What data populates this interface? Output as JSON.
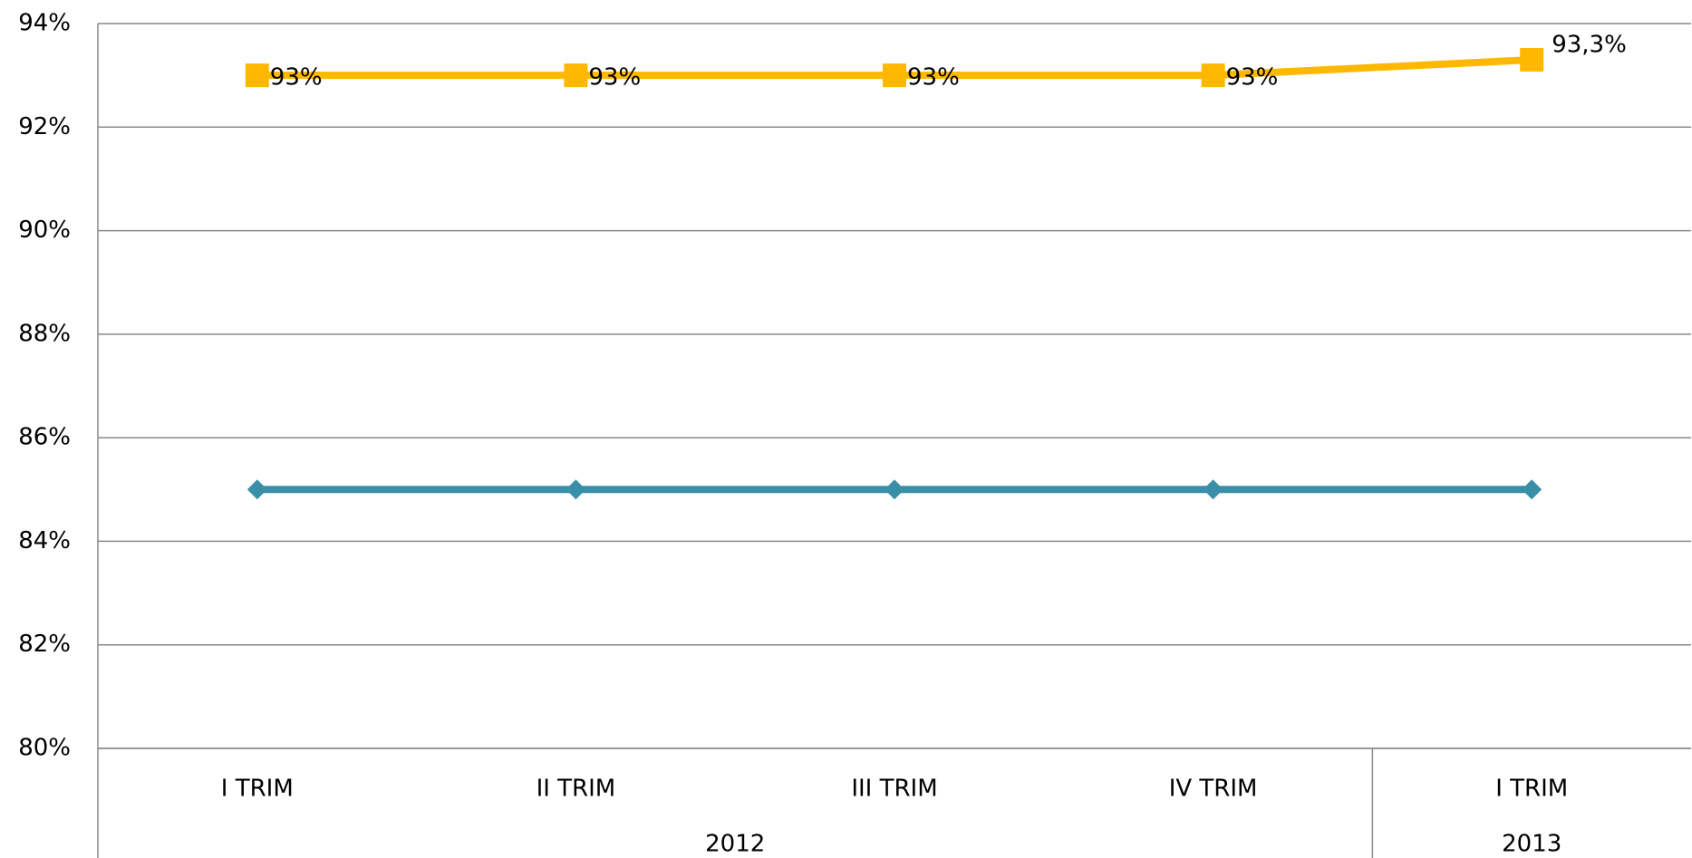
{
  "chart_data": {
    "type": "line",
    "groups": [
      {
        "label": "2012",
        "categories": [
          "I TRIM",
          "II TRIM",
          "III TRIM",
          "IV TRIM"
        ]
      },
      {
        "label": "2013",
        "categories": [
          "I TRIM"
        ]
      }
    ],
    "series": [
      {
        "color": "#3a8fa8",
        "marker": "diamond",
        "values": [
          85,
          85,
          85,
          85,
          85
        ]
      },
      {
        "color": "#ffb800",
        "marker": "square",
        "values": [
          93,
          93,
          93,
          93,
          93.3
        ],
        "value_labels": [
          "93%",
          "93%",
          "93%",
          "93%",
          "93,3%"
        ]
      }
    ],
    "ylim": [
      80,
      94
    ],
    "yticks": [
      {
        "value": 80,
        "label": "80%"
      },
      {
        "value": 82,
        "label": "82%"
      },
      {
        "value": 84,
        "label": "84%"
      },
      {
        "value": 86,
        "label": "86%"
      },
      {
        "value": 88,
        "label": "88%"
      },
      {
        "value": 90,
        "label": "90%"
      },
      {
        "value": 92,
        "label": "92%"
      },
      {
        "value": 94,
        "label": "94%"
      }
    ],
    "grid": true
  }
}
